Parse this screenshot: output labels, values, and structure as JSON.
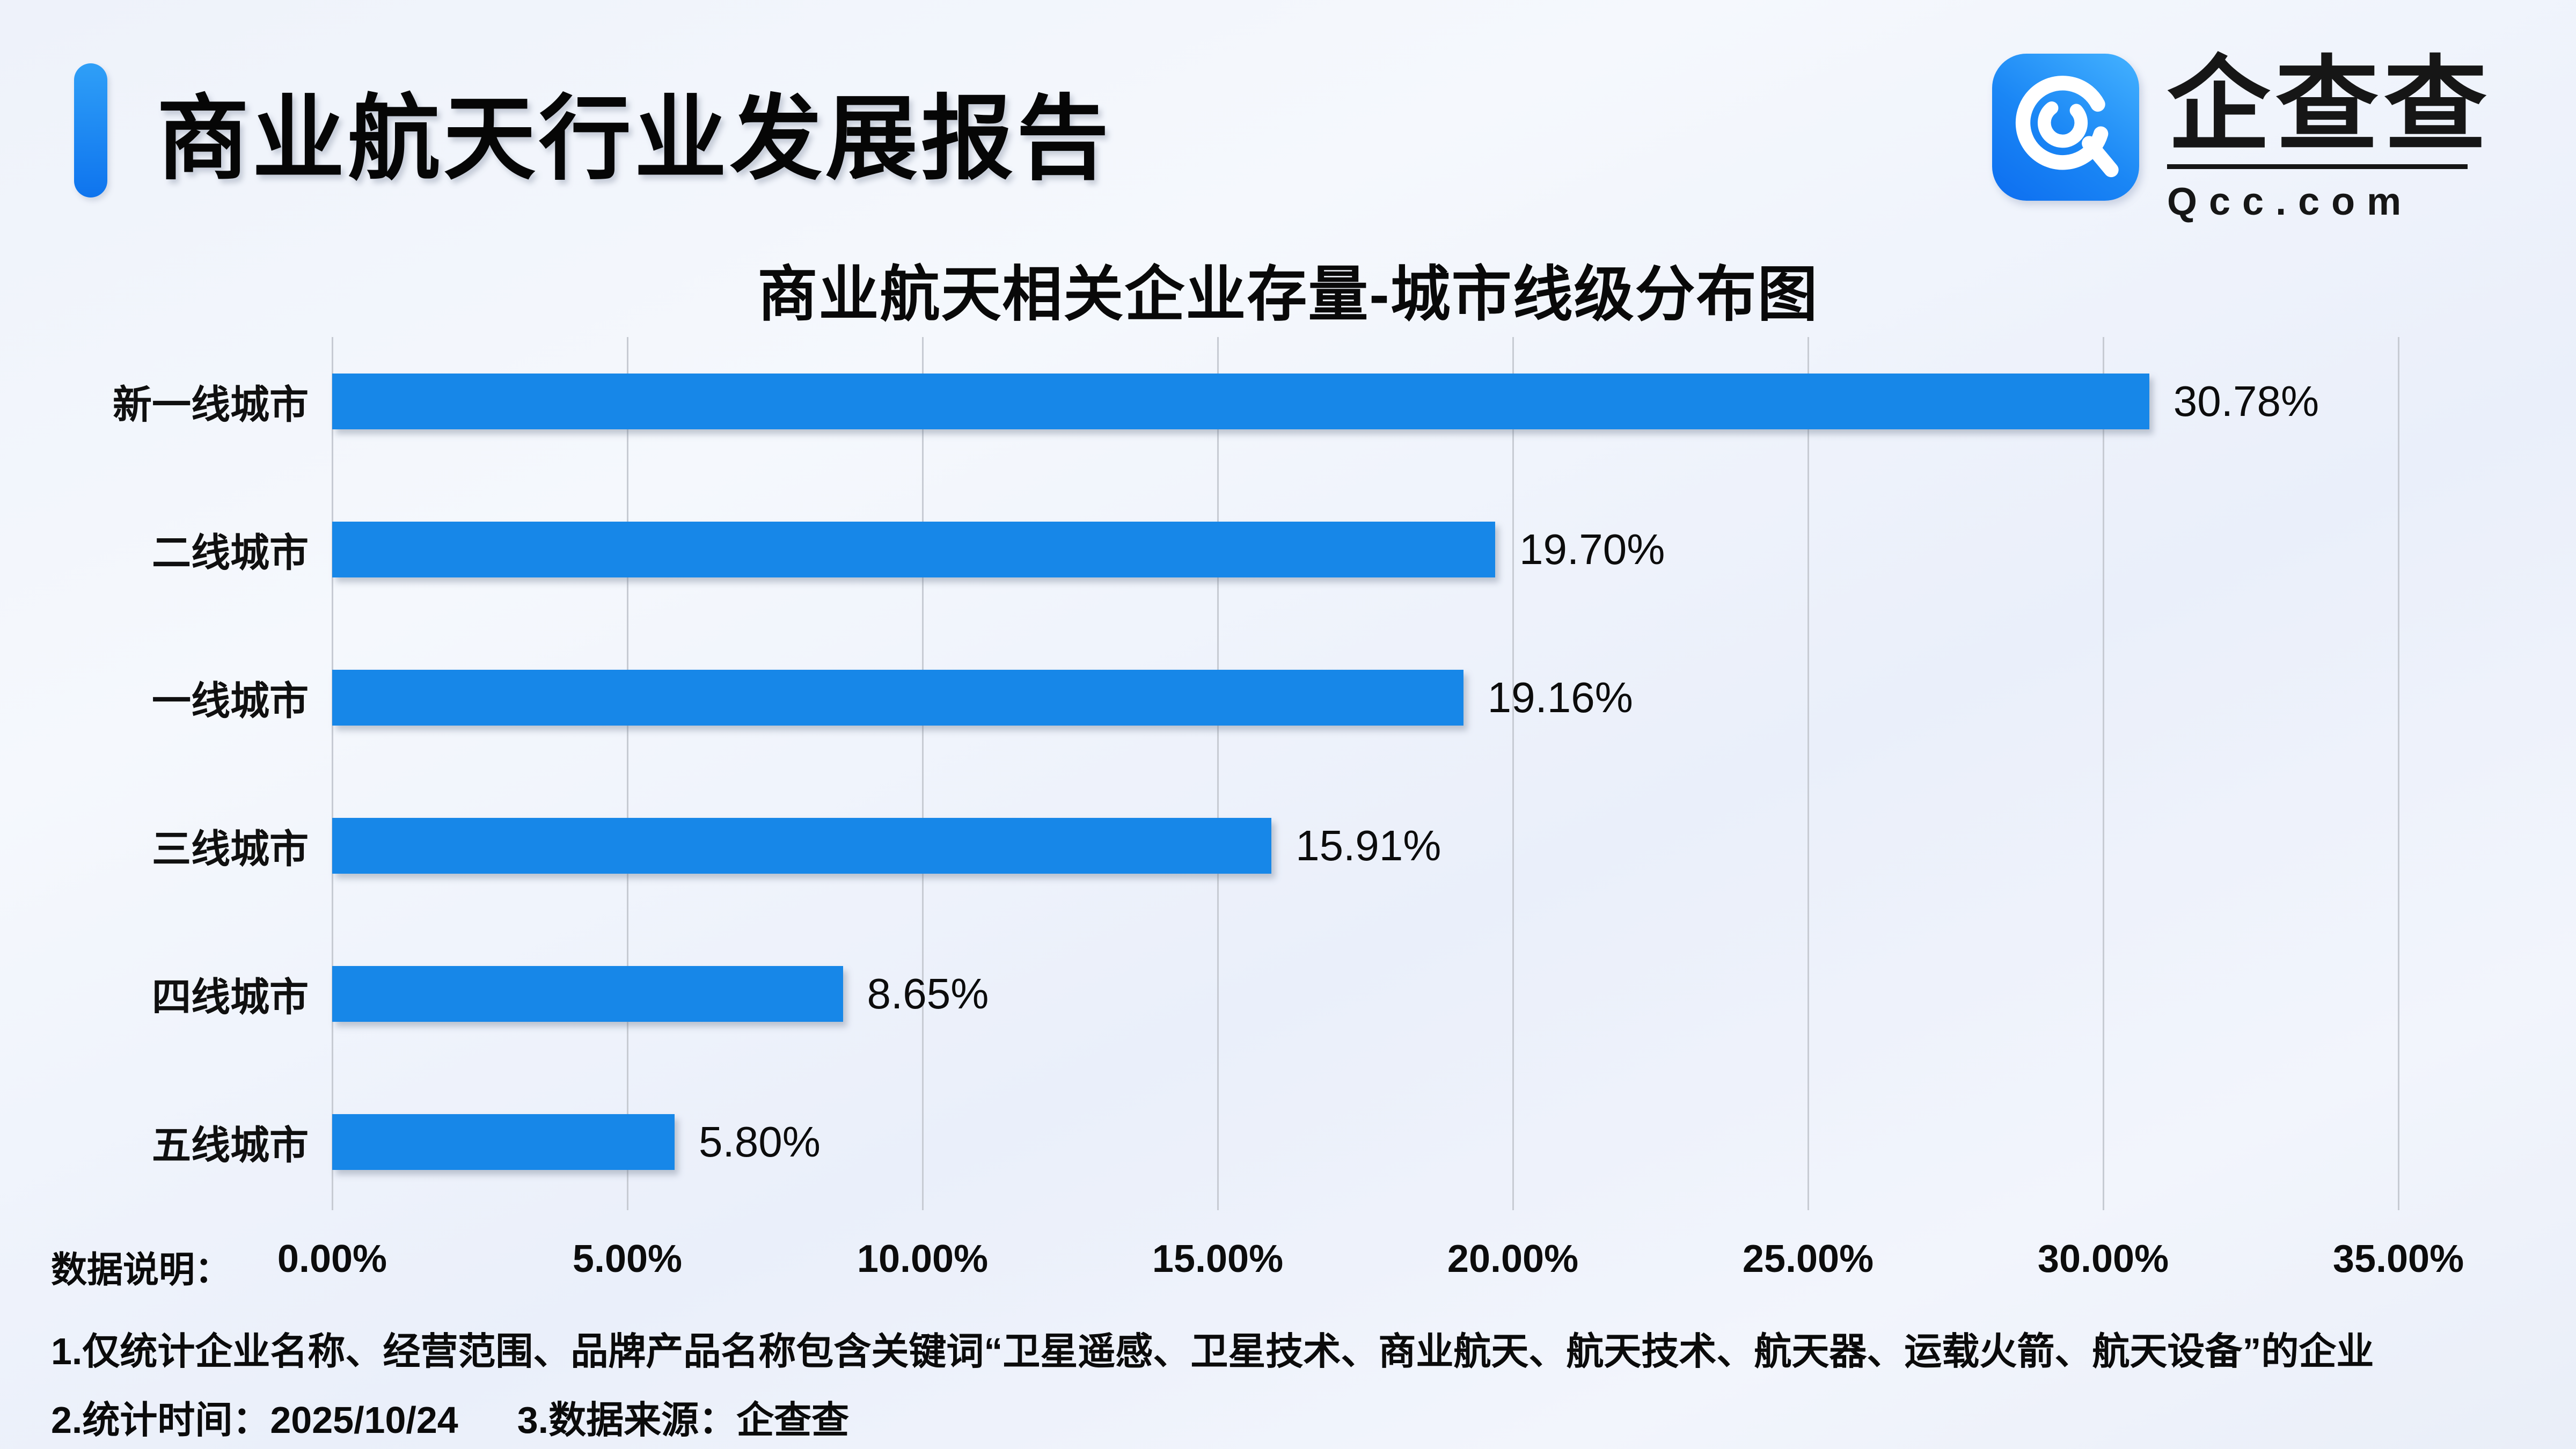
{
  "header": {
    "title": "商业航天行业发展报告"
  },
  "logo": {
    "name_cn": "企查查",
    "name_en": "Qcc.com",
    "icon": "qcc-q-mark-icon",
    "icon_color_top": "#44b2ff",
    "icon_color_bottom": "#0d6ef0"
  },
  "chart_data": {
    "type": "bar",
    "orientation": "horizontal",
    "title": "商业航天相关企业存量-城市线级分布图",
    "categories": [
      "新一线城市",
      "二线城市",
      "一线城市",
      "三线城市",
      "四线城市",
      "五线城市"
    ],
    "values": [
      30.78,
      19.7,
      19.16,
      15.91,
      8.65,
      5.8
    ],
    "value_labels": [
      "30.78%",
      "19.70%",
      "19.16%",
      "15.91%",
      "8.65%",
      "5.80%"
    ],
    "x_ticks": [
      "0.00%",
      "5.00%",
      "10.00%",
      "15.00%",
      "20.00%",
      "25.00%",
      "30.00%",
      "35.00%"
    ],
    "xlim": [
      0,
      35
    ],
    "xlabel": "",
    "ylabel": "",
    "grid": true,
    "legend": false,
    "bar_color": "#1787e8",
    "gridline_color": "#c7cbd3"
  },
  "footer": {
    "label": "数据说明：",
    "note1": "1.仅统计企业名称、经营范围、品牌产品名称包含关键词“卫星遥感、卫星技术、商业航天、航天技术、航天器、运载火箭、航天设备”的企业",
    "note2_time": "2.统计时间：2025/10/24",
    "note2_source": "3.数据来源：企查查"
  }
}
